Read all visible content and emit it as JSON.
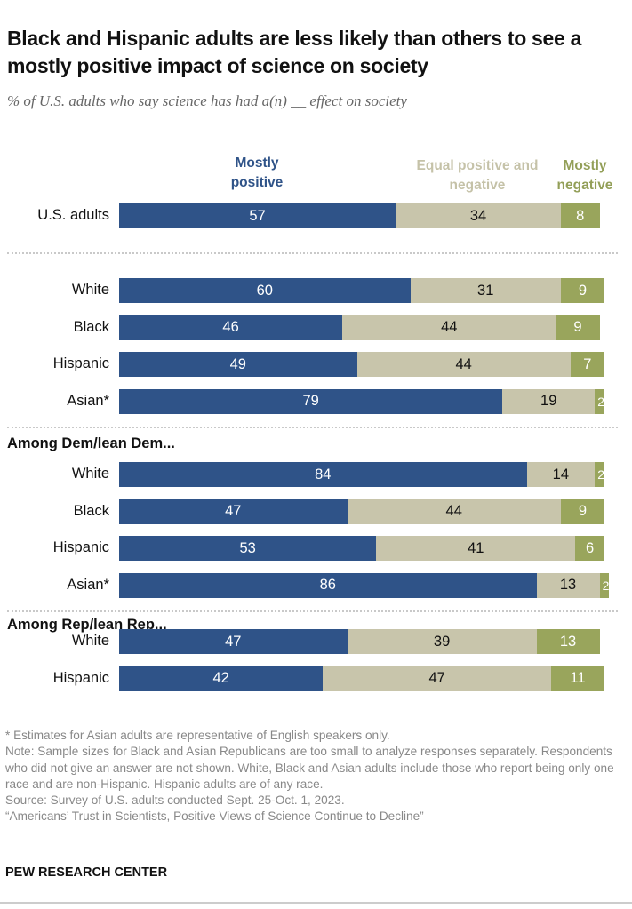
{
  "title": "Black and Hispanic adults are less likely than others to see a mostly positive impact of science on society",
  "subtitle": "% of U.S. adults who say science has had a(n) __ effect on society",
  "chart_data": {
    "type": "bar",
    "orientation": "horizontal-stacked",
    "legend_placement": "top",
    "series": [
      {
        "name": "Mostly positive",
        "color": "#2f5388",
        "label_color": "#ffffff"
      },
      {
        "name": "Equal positive and negative",
        "color": "#c8c5ab",
        "label_color": "#111111"
      },
      {
        "name": "Mostly negative",
        "color": "#99a55c",
        "label_color": "#ffffff"
      }
    ],
    "groups": [
      {
        "label": "",
        "rows": [
          {
            "label": "U.S. adults",
            "values": [
              57,
              34,
              8
            ]
          }
        ]
      },
      {
        "label": "",
        "rows": [
          {
            "label": "White",
            "values": [
              60,
              31,
              9
            ]
          },
          {
            "label": "Black",
            "values": [
              46,
              44,
              9
            ]
          },
          {
            "label": "Hispanic",
            "values": [
              49,
              44,
              7
            ]
          },
          {
            "label": "Asian*",
            "values": [
              79,
              19,
              2
            ]
          }
        ]
      },
      {
        "label": "Among Dem/lean Dem...",
        "rows": [
          {
            "label": "White",
            "values": [
              84,
              14,
              2
            ]
          },
          {
            "label": "Black",
            "values": [
              47,
              44,
              9
            ]
          },
          {
            "label": "Hispanic",
            "values": [
              53,
              41,
              6
            ]
          },
          {
            "label": "Asian*",
            "values": [
              86,
              13,
              2
            ]
          }
        ]
      },
      {
        "label": "Among Rep/lean Rep...",
        "rows": [
          {
            "label": "White",
            "values": [
              47,
              39,
              13
            ]
          },
          {
            "label": "Hispanic",
            "values": [
              42,
              47,
              11
            ]
          }
        ]
      }
    ]
  },
  "footnotes": [
    "* Estimates for Asian adults are representative of English speakers only.",
    "Note: Sample sizes for Black and Asian Republicans are too small to analyze responses separately. Respondents who did not give an answer are not shown. White, Black and Asian adults include those who report being only one race and are non-Hispanic. Hispanic adults are of any race.",
    "Source: Survey of U.S. adults conducted Sept. 25-Oct. 1, 2023.",
    "“Americans’ Trust in Scientists, Positive Views of Science Continue to Decline”"
  ],
  "brand": "PEW RESEARCH CENTER"
}
